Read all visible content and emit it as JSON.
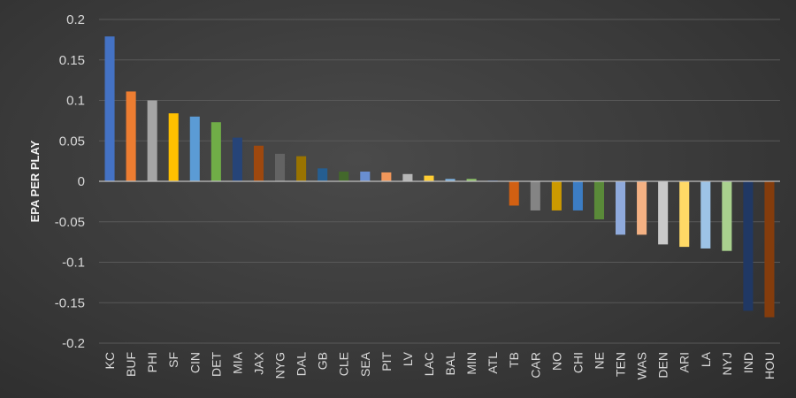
{
  "chart_data": {
    "type": "bar",
    "title": "",
    "xlabel": "",
    "ylabel": "EPA PER PLAY",
    "ylim": [
      -0.2,
      0.2
    ],
    "yticks": [
      "0.2",
      "0.15",
      "0.1",
      "0.05",
      "0",
      "-0.05",
      "-0.1",
      "-0.15",
      "-0.2"
    ],
    "ytick_values": [
      0.2,
      0.15,
      0.1,
      0.05,
      0,
      -0.05,
      -0.1,
      -0.15,
      -0.2
    ],
    "grid": true,
    "legend": "none",
    "categories": [
      "KC",
      "BUF",
      "PHI",
      "SF",
      "CIN",
      "DET",
      "MIA",
      "JAX",
      "NYG",
      "DAL",
      "GB",
      "CLE",
      "SEA",
      "PIT",
      "LV",
      "LAC",
      "BAL",
      "MIN",
      "ATL",
      "TB",
      "CAR",
      "NO",
      "CHI",
      "NE",
      "TEN",
      "WAS",
      "DEN",
      "ARI",
      "LA",
      "NYJ",
      "IND",
      "HOU"
    ],
    "values": [
      0.179,
      0.111,
      0.1,
      0.084,
      0.08,
      0.073,
      0.054,
      0.044,
      0.034,
      0.031,
      0.016,
      0.012,
      0.012,
      0.011,
      0.009,
      0.007,
      0.003,
      0.003,
      0.001,
      -0.03,
      -0.036,
      -0.036,
      -0.036,
      -0.047,
      -0.066,
      -0.066,
      -0.078,
      -0.081,
      -0.083,
      -0.086,
      -0.16,
      -0.168
    ],
    "colors": [
      "#4472c4",
      "#ed7d31",
      "#a5a5a5",
      "#ffc000",
      "#5b9bd5",
      "#70ad47",
      "#264478",
      "#9e480e",
      "#636363",
      "#997300",
      "#255e91",
      "#43682b",
      "#698ed0",
      "#f1975a",
      "#b7b7b7",
      "#ffcd33",
      "#7cafdd",
      "#8cc168",
      "#335aa1",
      "#d26012",
      "#848484",
      "#cc9a00",
      "#3c7dc4",
      "#5a8a39",
      "#8faadc",
      "#f4b183",
      "#c9c9c9",
      "#ffd966",
      "#9dc3e6",
      "#a9d18e",
      "#203864",
      "#843c0c"
    ]
  }
}
